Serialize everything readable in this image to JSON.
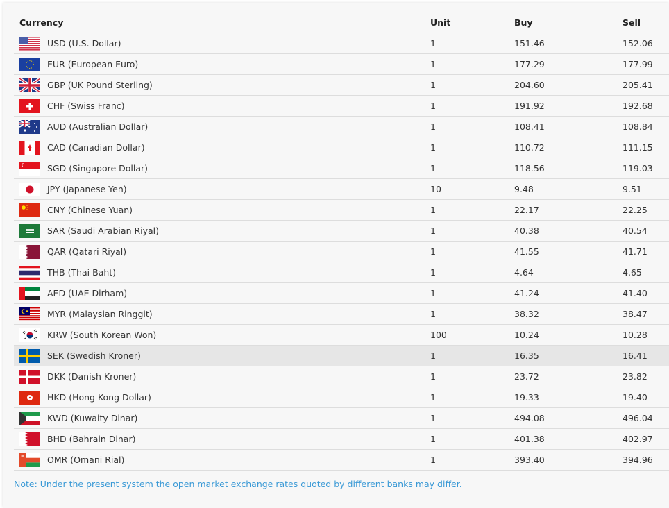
{
  "table": {
    "headers": {
      "currency": "Currency",
      "unit": "Unit",
      "buy": "Buy",
      "sell": "Sell"
    },
    "rows": [
      {
        "flag": "us-flag-icon",
        "code": "USD",
        "currency": "USD (U.S. Dollar)",
        "unit": "1",
        "buy": "151.46",
        "sell": "152.06"
      },
      {
        "flag": "eu-flag-icon",
        "code": "EUR",
        "currency": "EUR (European Euro)",
        "unit": "1",
        "buy": "177.29",
        "sell": "177.99"
      },
      {
        "flag": "uk-flag-icon",
        "code": "GBP",
        "currency": "GBP (UK Pound Sterling)",
        "unit": "1",
        "buy": "204.60",
        "sell": "205.41"
      },
      {
        "flag": "ch-flag-icon",
        "code": "CHF",
        "currency": "CHF (Swiss Franc)",
        "unit": "1",
        "buy": "191.92",
        "sell": "192.68"
      },
      {
        "flag": "au-flag-icon",
        "code": "AUD",
        "currency": "AUD (Australian Dollar)",
        "unit": "1",
        "buy": "108.41",
        "sell": "108.84"
      },
      {
        "flag": "ca-flag-icon",
        "code": "CAD",
        "currency": "CAD (Canadian Dollar)",
        "unit": "1",
        "buy": "110.72",
        "sell": "111.15"
      },
      {
        "flag": "sg-flag-icon",
        "code": "SGD",
        "currency": "SGD (Singapore Dollar)",
        "unit": "1",
        "buy": "118.56",
        "sell": "119.03"
      },
      {
        "flag": "jp-flag-icon",
        "code": "JPY",
        "currency": "JPY (Japanese Yen)",
        "unit": "10",
        "buy": "9.48",
        "sell": "9.51"
      },
      {
        "flag": "cn-flag-icon",
        "code": "CNY",
        "currency": "CNY (Chinese Yuan)",
        "unit": "1",
        "buy": "22.17",
        "sell": "22.25"
      },
      {
        "flag": "sa-flag-icon",
        "code": "SAR",
        "currency": "SAR (Saudi Arabian Riyal)",
        "unit": "1",
        "buy": "40.38",
        "sell": "40.54"
      },
      {
        "flag": "qa-flag-icon",
        "code": "QAR",
        "currency": "QAR (Qatari Riyal)",
        "unit": "1",
        "buy": "41.55",
        "sell": "41.71"
      },
      {
        "flag": "th-flag-icon",
        "code": "THB",
        "currency": "THB (Thai Baht)",
        "unit": "1",
        "buy": "4.64",
        "sell": "4.65"
      },
      {
        "flag": "ae-flag-icon",
        "code": "AED",
        "currency": "AED (UAE Dirham)",
        "unit": "1",
        "buy": "41.24",
        "sell": "41.40"
      },
      {
        "flag": "my-flag-icon",
        "code": "MYR",
        "currency": "MYR (Malaysian Ringgit)",
        "unit": "1",
        "buy": "38.32",
        "sell": "38.47"
      },
      {
        "flag": "kr-flag-icon",
        "code": "KRW",
        "currency": "KRW (South Korean Won)",
        "unit": "100",
        "buy": "10.24",
        "sell": "10.28"
      },
      {
        "flag": "se-flag-icon",
        "code": "SEK",
        "currency": "SEK (Swedish Kroner)",
        "unit": "1",
        "buy": "16.35",
        "sell": "16.41",
        "highlighted": true
      },
      {
        "flag": "dk-flag-icon",
        "code": "DKK",
        "currency": "DKK (Danish Kroner)",
        "unit": "1",
        "buy": "23.72",
        "sell": "23.82"
      },
      {
        "flag": "hk-flag-icon",
        "code": "HKD",
        "currency": "HKD (Hong Kong Dollar)",
        "unit": "1",
        "buy": "19.33",
        "sell": "19.40"
      },
      {
        "flag": "kw-flag-icon",
        "code": "KWD",
        "currency": "KWD (Kuwaity Dinar)",
        "unit": "1",
        "buy": "494.08",
        "sell": "496.04"
      },
      {
        "flag": "bh-flag-icon",
        "code": "BHD",
        "currency": "BHD (Bahrain Dinar)",
        "unit": "1",
        "buy": "401.38",
        "sell": "402.97"
      },
      {
        "flag": "om-flag-icon",
        "code": "OMR",
        "currency": "OMR (Omani Rial)",
        "unit": "1",
        "buy": "393.40",
        "sell": "394.96"
      }
    ]
  },
  "note": "Note: Under the present system the open market exchange rates quoted by different banks may differ.",
  "colors": {
    "note": "#3b9ad6",
    "highlight_row": "#e6e6e6",
    "panel": "#f7f7f7"
  }
}
